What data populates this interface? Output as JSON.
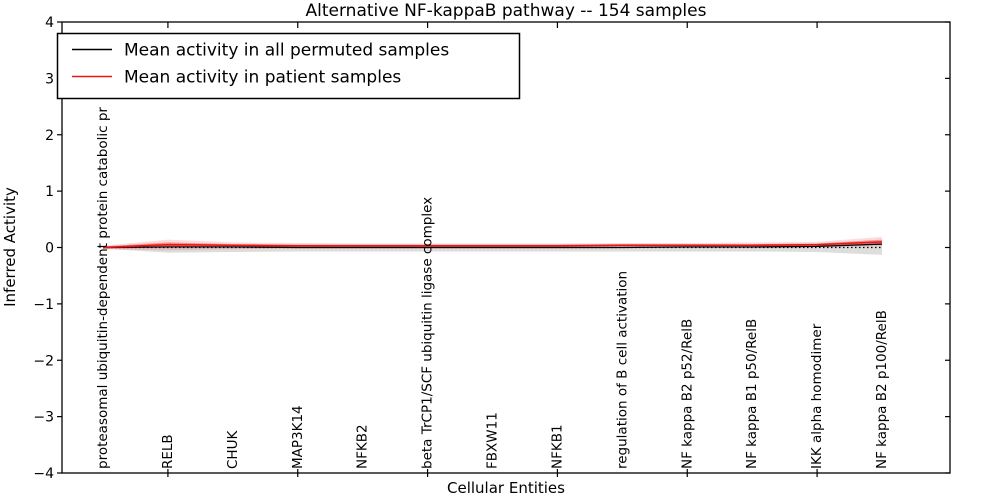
{
  "figure": {
    "title": "Alternative NF-kappaB pathway -- 154 samples",
    "xlabel": "Cellular Entities",
    "ylabel": "Inferred Activity"
  },
  "legend": {
    "items": [
      {
        "label": "Mean activity in all permuted samples",
        "color": "#000000"
      },
      {
        "label": "Mean activity in patient samples",
        "color": "#e81818"
      }
    ]
  },
  "chart_data": {
    "type": "line",
    "title": "Alternative NF-kappaB pathway -- 154 samples",
    "xlabel": "Cellular Entities",
    "ylabel": "Inferred Activity",
    "ylim": [
      -4,
      4
    ],
    "ytick_labels": [
      "4",
      "3",
      "2",
      "1",
      "0",
      "−1",
      "−2",
      "−3",
      "−4"
    ],
    "ytick_values": [
      4,
      3,
      2,
      1,
      0,
      -1,
      -2,
      -3,
      -4
    ],
    "grid": false,
    "legend_position": "upper left",
    "zero_line_style": "dotted",
    "categories": [
      "proteasomal ubiquitin-dependent protein catabolic pr",
      "RELB",
      "CHUK",
      "MAP3K14",
      "NFKB2",
      "beta TrCP1/SCF ubiquitin ligase complex",
      "FBXW11",
      "NFKB1",
      "regulation of B cell activation",
      "NF kappa B2 p52/RelB",
      "NF kappa B1 p50/RelB",
      "IKK alpha homodimer",
      "NF kappa B2 p100/RelB"
    ],
    "series": [
      {
        "name": "Mean activity in all permuted samples",
        "color": "#000000",
        "values": [
          0.0,
          0.01,
          0.01,
          0.0,
          0.0,
          0.0,
          0.0,
          0.0,
          0.0,
          0.01,
          0.01,
          0.02,
          0.06
        ]
      },
      {
        "name": "Mean activity in patient samples",
        "color": "#e81818",
        "values": [
          0.0,
          0.05,
          0.04,
          0.03,
          0.03,
          0.03,
          0.03,
          0.03,
          0.04,
          0.04,
          0.04,
          0.05,
          0.1
        ]
      }
    ],
    "bands": [
      {
        "name": "permuted-samples-spread",
        "color": "rgba(120,120,120,0.25)",
        "upper": [
          0.02,
          0.06,
          0.05,
          0.04,
          0.04,
          0.04,
          0.04,
          0.04,
          0.04,
          0.04,
          0.05,
          0.05,
          0.09
        ],
        "lower": [
          -0.02,
          -0.09,
          -0.08,
          -0.07,
          -0.07,
          -0.07,
          -0.07,
          -0.07,
          -0.07,
          -0.07,
          -0.07,
          -0.08,
          -0.13
        ]
      },
      {
        "name": "patient-samples-outer-spread",
        "color": "rgba(235,30,30,0.15)",
        "upper": [
          0.03,
          0.14,
          0.09,
          0.08,
          0.07,
          0.07,
          0.07,
          0.07,
          0.08,
          0.08,
          0.09,
          0.1,
          0.19
        ],
        "lower": [
          -0.03,
          -0.05,
          -0.03,
          -0.02,
          -0.02,
          -0.02,
          -0.02,
          -0.02,
          -0.01,
          -0.01,
          -0.01,
          0.0,
          0.02
        ]
      },
      {
        "name": "patient-samples-inner-spread",
        "color": "rgba(235,30,30,0.40)",
        "upper": [
          0.02,
          0.09,
          0.06,
          0.05,
          0.05,
          0.05,
          0.05,
          0.05,
          0.06,
          0.06,
          0.06,
          0.07,
          0.14
        ],
        "lower": [
          -0.02,
          0.0,
          0.01,
          0.01,
          0.01,
          0.01,
          0.01,
          0.01,
          0.02,
          0.02,
          0.02,
          0.03,
          0.06
        ]
      }
    ]
  }
}
